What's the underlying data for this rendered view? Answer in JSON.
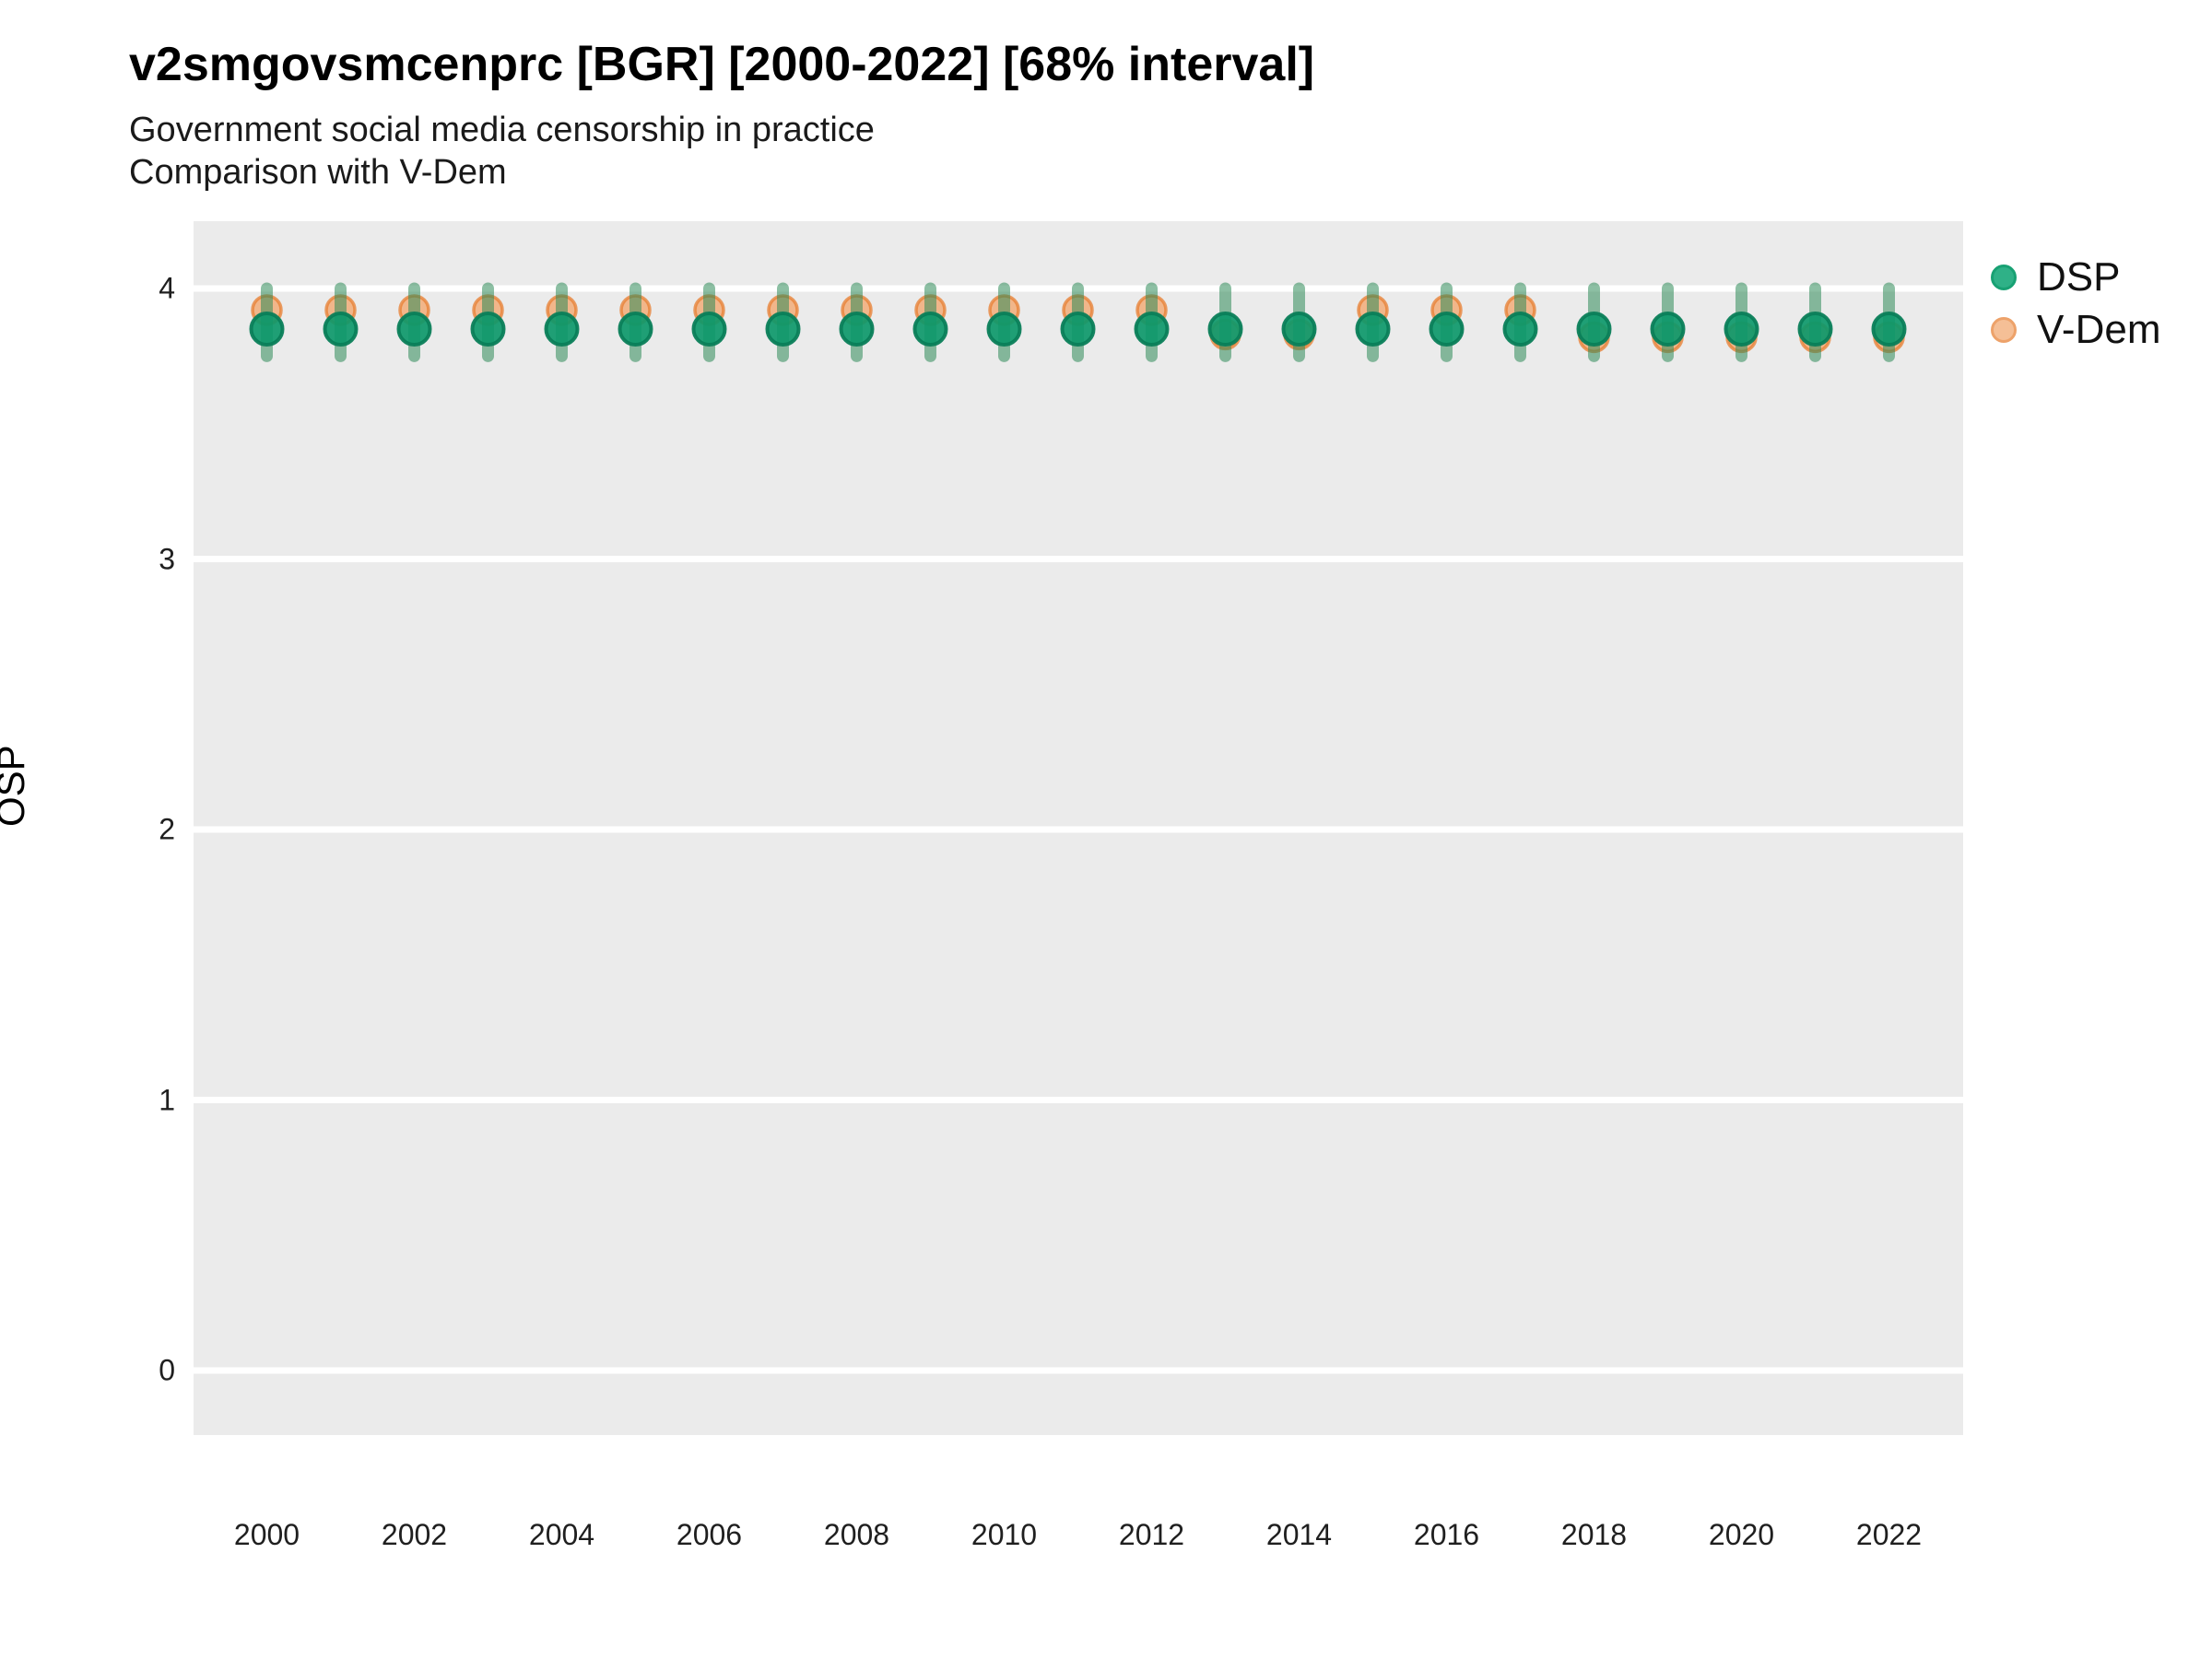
{
  "header": {
    "title": "v2smgovsmcenprc [BGR] [2000-2022] [68% interval]",
    "subtitle1": "Government social media censorship in practice",
    "subtitle2": "Comparison with V-Dem"
  },
  "colors": {
    "panel_bg": "#EBEBEB",
    "gridline": "#FFFFFF",
    "interval_bar": "rgba(46,139,87,0.55)",
    "dsp_fill": "rgba(13,152,106,0.92)",
    "dsp_stroke": "rgba(9,126,88,0.95)",
    "vdem_fill": "rgba(244,154,86,0.65)",
    "vdem_stroke": "rgba(231,126,48,0.75)",
    "legend_dsp_fill": "#2FB187",
    "legend_dsp_stroke": "#18A173",
    "legend_vdem_fill": "#F5BF96",
    "legend_vdem_stroke": "#EDA26A",
    "text": "#000000"
  },
  "chart_data": {
    "type": "scatter",
    "title": "v2smgovsmcenprc [BGR] [2000-2022] [68% interval]",
    "subtitle": [
      "Government social media censorship in practice",
      "Comparison with V-Dem"
    ],
    "xlabel": "",
    "ylabel": "OSP",
    "interval": "68%",
    "x": [
      2000,
      2001,
      2002,
      2003,
      2004,
      2005,
      2006,
      2007,
      2008,
      2009,
      2010,
      2011,
      2012,
      2013,
      2014,
      2015,
      2016,
      2017,
      2018,
      2019,
      2020,
      2021,
      2022
    ],
    "x_tick_labels": [
      "2000",
      "2002",
      "2004",
      "2006",
      "2008",
      "2010",
      "2012",
      "2014",
      "2016",
      "2018",
      "2020",
      "2022"
    ],
    "y_ticks": [
      "4",
      "3",
      "2",
      "1",
      "0"
    ],
    "y_tick_values": [
      4,
      3,
      2,
      1,
      0
    ],
    "ylim": [
      -0.24,
      4.25
    ],
    "xlim": [
      1999,
      2023
    ],
    "grid": "horizontal-major-only",
    "legend_position": "right",
    "series": [
      {
        "name": "DSP",
        "type": "pointrange",
        "values": [
          3.85,
          3.85,
          3.85,
          3.85,
          3.85,
          3.85,
          3.85,
          3.85,
          3.85,
          3.85,
          3.85,
          3.85,
          3.85,
          3.85,
          3.85,
          3.85,
          3.85,
          3.85,
          3.85,
          3.85,
          3.85,
          3.85,
          3.85
        ],
        "lo": [
          3.75,
          3.75,
          3.75,
          3.75,
          3.75,
          3.75,
          3.75,
          3.75,
          3.75,
          3.75,
          3.75,
          3.75,
          3.75,
          3.75,
          3.75,
          3.75,
          3.75,
          3.75,
          3.75,
          3.75,
          3.75,
          3.75,
          3.75
        ],
        "hi": [
          4.0,
          4.0,
          4.0,
          4.0,
          4.0,
          4.0,
          4.0,
          4.0,
          4.0,
          4.0,
          4.0,
          4.0,
          4.0,
          4.0,
          4.0,
          4.0,
          4.0,
          4.0,
          4.0,
          4.0,
          4.0,
          4.0,
          4.0
        ]
      },
      {
        "name": "V-Dem",
        "type": "point",
        "values": [
          3.92,
          3.92,
          3.92,
          3.92,
          3.92,
          3.92,
          3.92,
          3.92,
          3.92,
          3.92,
          3.92,
          3.92,
          3.92,
          3.83,
          3.83,
          3.92,
          3.92,
          3.92,
          3.82,
          3.82,
          3.82,
          3.82,
          3.82
        ]
      }
    ]
  }
}
